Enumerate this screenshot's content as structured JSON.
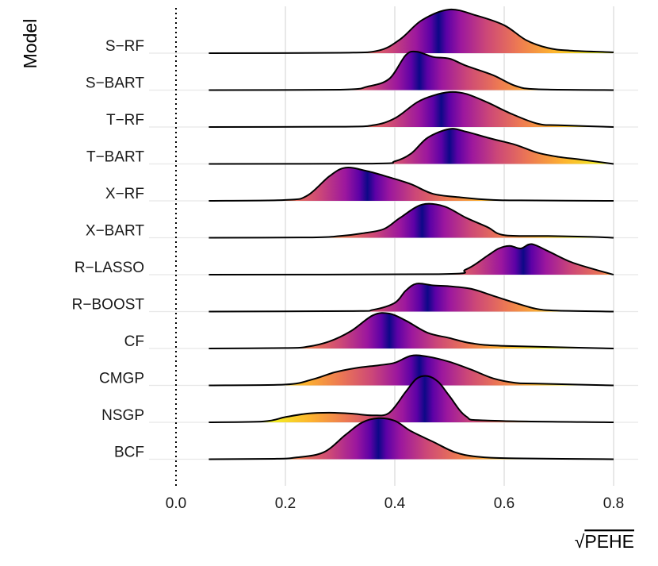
{
  "chart_data": {
    "type": "ridgeline",
    "xlabel": "PEHE",
    "xlabel_prefix": "√",
    "ylabel": "Model",
    "xlim": [
      0.0,
      0.8
    ],
    "x_ticks": [
      0.0,
      0.2,
      0.4,
      0.6,
      0.8
    ],
    "x_tick_labels": [
      "0.0",
      "0.2",
      "0.4",
      "0.6",
      "0.8"
    ],
    "reference_line": {
      "x": 0.0,
      "style": "dotted"
    },
    "grid": "vertical-major",
    "legend": "none",
    "fill_colormap": "plasma",
    "categories": [
      "S−RF",
      "S−BART",
      "T−RF",
      "T−BART",
      "X−RF",
      "X−BART",
      "R−LASSO",
      "R−BOOST",
      "CF",
      "CMGP",
      "NSGP",
      "BCF"
    ],
    "series": [
      {
        "name": "S−RF",
        "median": 0.48,
        "points": [
          [
            0.06,
            0
          ],
          [
            0.3,
            0.005
          ],
          [
            0.37,
            0.03
          ],
          [
            0.41,
            0.16
          ],
          [
            0.45,
            0.38
          ],
          [
            0.5,
            0.5
          ],
          [
            0.55,
            0.43
          ],
          [
            0.6,
            0.32
          ],
          [
            0.64,
            0.15
          ],
          [
            0.68,
            0.06
          ],
          [
            0.72,
            0.03
          ],
          [
            0.8,
            0.01
          ]
        ]
      },
      {
        "name": "S−BART",
        "median": 0.445,
        "points": [
          [
            0.06,
            0
          ],
          [
            0.3,
            0.005
          ],
          [
            0.35,
            0.04
          ],
          [
            0.39,
            0.13
          ],
          [
            0.42,
            0.4
          ],
          [
            0.44,
            0.44
          ],
          [
            0.47,
            0.38
          ],
          [
            0.5,
            0.36
          ],
          [
            0.53,
            0.28
          ],
          [
            0.58,
            0.17
          ],
          [
            0.62,
            0.05
          ],
          [
            0.66,
            0.01
          ],
          [
            0.8,
            0
          ]
        ]
      },
      {
        "name": "T−RF",
        "median": 0.485,
        "points": [
          [
            0.06,
            0
          ],
          [
            0.3,
            0.004
          ],
          [
            0.36,
            0.02
          ],
          [
            0.4,
            0.1
          ],
          [
            0.44,
            0.28
          ],
          [
            0.47,
            0.36
          ],
          [
            0.5,
            0.4
          ],
          [
            0.53,
            0.38
          ],
          [
            0.57,
            0.28
          ],
          [
            0.61,
            0.16
          ],
          [
            0.66,
            0.04
          ],
          [
            0.7,
            0.02
          ],
          [
            0.8,
            0
          ]
        ]
      },
      {
        "name": "T−BART",
        "median": 0.5,
        "points": [
          [
            0.06,
            0
          ],
          [
            0.36,
            0.004
          ],
          [
            0.4,
            0.03
          ],
          [
            0.43,
            0.12
          ],
          [
            0.46,
            0.3
          ],
          [
            0.5,
            0.4
          ],
          [
            0.53,
            0.37
          ],
          [
            0.57,
            0.3
          ],
          [
            0.62,
            0.22
          ],
          [
            0.66,
            0.13
          ],
          [
            0.7,
            0.08
          ],
          [
            0.74,
            0.05
          ],
          [
            0.8,
            0
          ]
        ]
      },
      {
        "name": "X−RF",
        "median": 0.35,
        "points": [
          [
            0.06,
            0
          ],
          [
            0.2,
            0.01
          ],
          [
            0.24,
            0.06
          ],
          [
            0.28,
            0.28
          ],
          [
            0.31,
            0.38
          ],
          [
            0.35,
            0.34
          ],
          [
            0.39,
            0.27
          ],
          [
            0.43,
            0.19
          ],
          [
            0.47,
            0.08
          ],
          [
            0.52,
            0.04
          ],
          [
            0.58,
            0.01
          ],
          [
            0.63,
            0.005
          ],
          [
            0.8,
            0
          ]
        ]
      },
      {
        "name": "X−BART",
        "median": 0.45,
        "points": [
          [
            0.06,
            0
          ],
          [
            0.25,
            0.004
          ],
          [
            0.3,
            0.02
          ],
          [
            0.34,
            0.05
          ],
          [
            0.38,
            0.1
          ],
          [
            0.41,
            0.23
          ],
          [
            0.45,
            0.38
          ],
          [
            0.49,
            0.36
          ],
          [
            0.53,
            0.23
          ],
          [
            0.57,
            0.12
          ],
          [
            0.6,
            0.03
          ],
          [
            0.68,
            0.02
          ],
          [
            0.76,
            0.01
          ],
          [
            0.8,
            0
          ]
        ]
      },
      {
        "name": "R−LASSO",
        "median": 0.635,
        "points": [
          [
            0.06,
            0
          ],
          [
            0.48,
            0.005
          ],
          [
            0.53,
            0.06
          ],
          [
            0.57,
            0.22
          ],
          [
            0.59,
            0.3
          ],
          [
            0.61,
            0.33
          ],
          [
            0.63,
            0.3
          ],
          [
            0.65,
            0.35
          ],
          [
            0.68,
            0.27
          ],
          [
            0.72,
            0.15
          ],
          [
            0.76,
            0.07
          ],
          [
            0.8,
            0
          ]
        ]
      },
      {
        "name": "R−BOOST",
        "median": 0.46,
        "points": [
          [
            0.06,
            0
          ],
          [
            0.32,
            0.005
          ],
          [
            0.36,
            0.02
          ],
          [
            0.4,
            0.1
          ],
          [
            0.42,
            0.24
          ],
          [
            0.44,
            0.32
          ],
          [
            0.47,
            0.3
          ],
          [
            0.5,
            0.29
          ],
          [
            0.54,
            0.26
          ],
          [
            0.58,
            0.18
          ],
          [
            0.62,
            0.1
          ],
          [
            0.66,
            0.03
          ],
          [
            0.7,
            0.01
          ],
          [
            0.8,
            0
          ]
        ]
      },
      {
        "name": "CF",
        "median": 0.39,
        "points": [
          [
            0.06,
            0
          ],
          [
            0.2,
            0.005
          ],
          [
            0.24,
            0.02
          ],
          [
            0.28,
            0.08
          ],
          [
            0.32,
            0.2
          ],
          [
            0.36,
            0.38
          ],
          [
            0.39,
            0.4
          ],
          [
            0.42,
            0.32
          ],
          [
            0.46,
            0.18
          ],
          [
            0.5,
            0.12
          ],
          [
            0.54,
            0.06
          ],
          [
            0.6,
            0.03
          ],
          [
            0.8,
            0
          ]
        ]
      },
      {
        "name": "CMGP",
        "median": 0.445,
        "points": [
          [
            0.06,
            0
          ],
          [
            0.2,
            0.01
          ],
          [
            0.25,
            0.07
          ],
          [
            0.29,
            0.15
          ],
          [
            0.33,
            0.2
          ],
          [
            0.37,
            0.23
          ],
          [
            0.4,
            0.26
          ],
          [
            0.43,
            0.34
          ],
          [
            0.46,
            0.33
          ],
          [
            0.5,
            0.27
          ],
          [
            0.54,
            0.18
          ],
          [
            0.58,
            0.08
          ],
          [
            0.62,
            0.03
          ],
          [
            0.66,
            0.02
          ],
          [
            0.8,
            0
          ]
        ]
      },
      {
        "name": "NSGP",
        "median": 0.455,
        "points": [
          [
            0.06,
            0
          ],
          [
            0.16,
            0.01
          ],
          [
            0.2,
            0.06
          ],
          [
            0.24,
            0.1
          ],
          [
            0.28,
            0.11
          ],
          [
            0.32,
            0.1
          ],
          [
            0.36,
            0.08
          ],
          [
            0.39,
            0.11
          ],
          [
            0.42,
            0.35
          ],
          [
            0.44,
            0.5
          ],
          [
            0.46,
            0.53
          ],
          [
            0.48,
            0.46
          ],
          [
            0.5,
            0.3
          ],
          [
            0.53,
            0.07
          ],
          [
            0.57,
            0.02
          ],
          [
            0.8,
            0
          ]
        ]
      },
      {
        "name": "BCF",
        "median": 0.37,
        "points": [
          [
            0.06,
            0
          ],
          [
            0.18,
            0.005
          ],
          [
            0.22,
            0.02
          ],
          [
            0.27,
            0.08
          ],
          [
            0.31,
            0.28
          ],
          [
            0.34,
            0.42
          ],
          [
            0.37,
            0.47
          ],
          [
            0.4,
            0.44
          ],
          [
            0.43,
            0.32
          ],
          [
            0.47,
            0.2
          ],
          [
            0.51,
            0.08
          ],
          [
            0.55,
            0.03
          ],
          [
            0.62,
            0.01
          ],
          [
            0.8,
            0
          ]
        ]
      }
    ]
  }
}
